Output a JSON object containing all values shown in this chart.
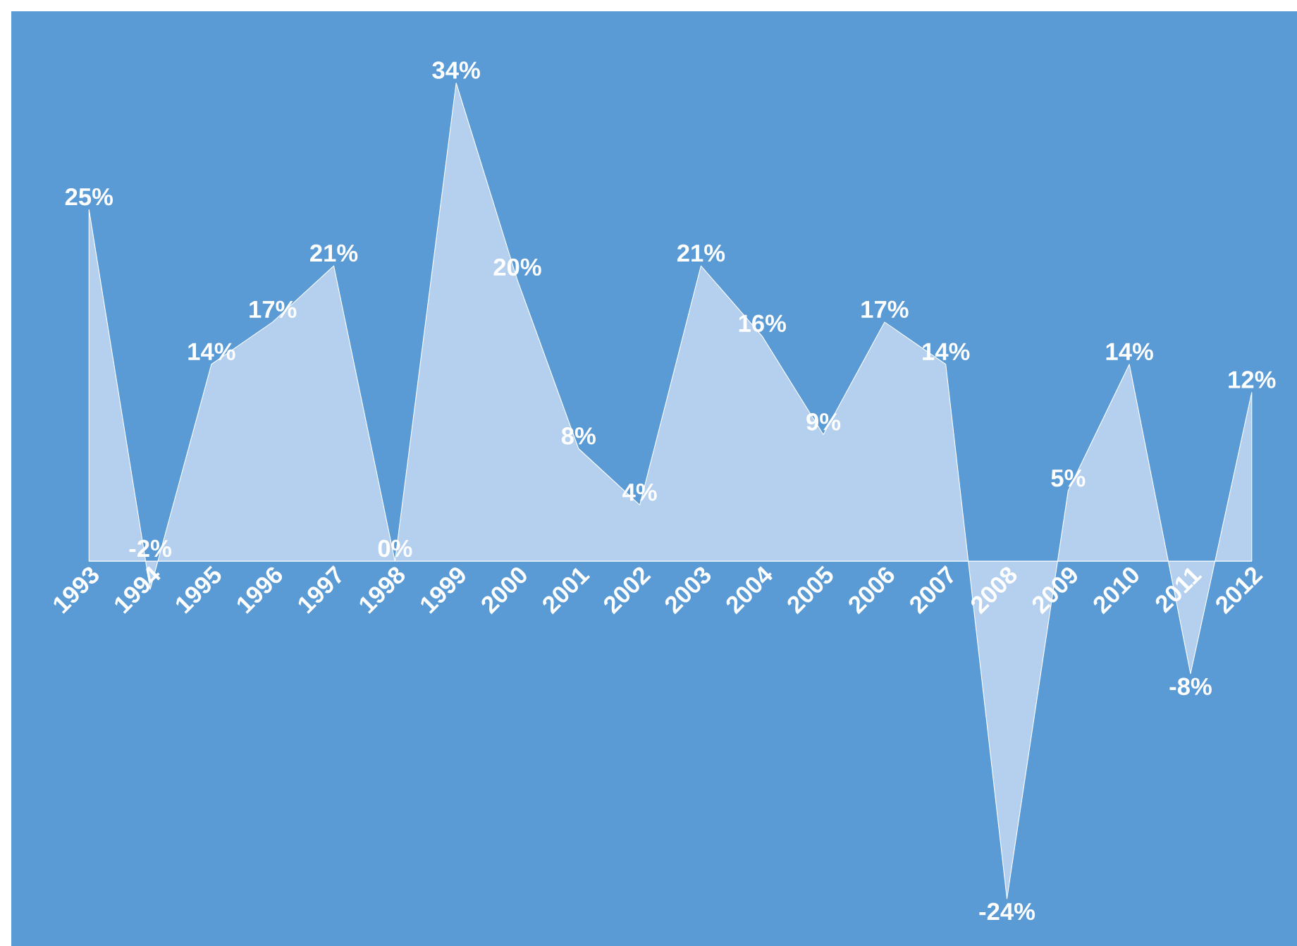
{
  "chart_data": {
    "type": "area",
    "categories": [
      "1993",
      "1994",
      "1995",
      "1996",
      "1997",
      "1998",
      "1999",
      "2000",
      "2001",
      "2002",
      "2003",
      "2004",
      "2005",
      "2006",
      "2007",
      "2008",
      "2009",
      "2010",
      "2011",
      "2012"
    ],
    "values": [
      25,
      -2,
      14,
      17,
      21,
      0,
      34,
      20,
      8,
      4,
      21,
      16,
      9,
      17,
      14,
      -24,
      5,
      14,
      -8,
      12
    ],
    "value_labels": [
      "25%",
      "-2%",
      "14%",
      "17%",
      "21%",
      "0%",
      "34%",
      "20%",
      "8%",
      "4%",
      "21%",
      "16%",
      "9%",
      "17%",
      "14%",
      "-24%",
      "5%",
      "14%",
      "-8%",
      "12%"
    ],
    "color": "#b4d0ee",
    "tick_labels": "x"
  }
}
